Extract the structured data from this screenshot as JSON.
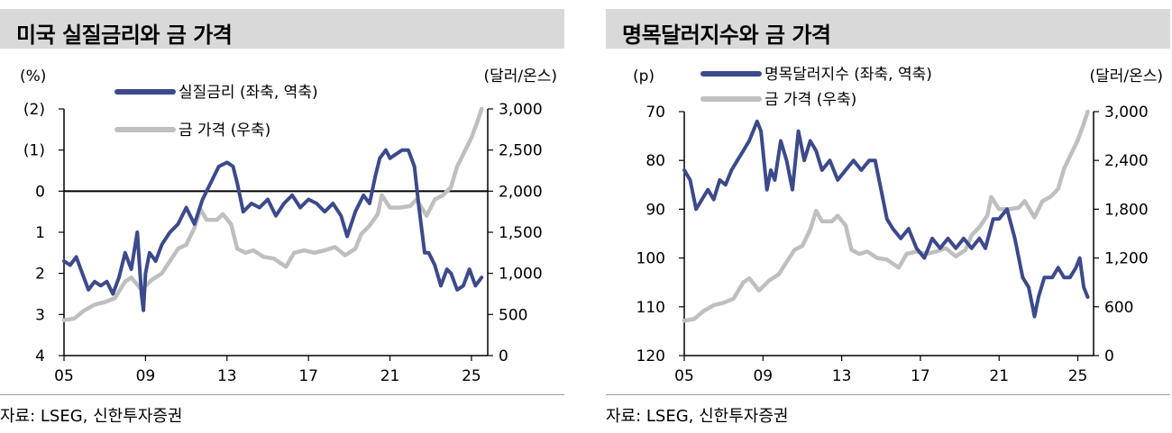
{
  "source_text": "자료: LSEG, 신한투자증권",
  "colors": {
    "navy": "#3c4a8b",
    "gray": "#bfbfbf",
    "title_bg": "#d9d9d9"
  },
  "chart_data": [
    {
      "type": "line",
      "title": "미국 실질금리와 금 가격",
      "left_unit": "(%)",
      "right_unit": "(달러/온스)",
      "left_axis": {
        "ticks": [
          -2,
          -1,
          0,
          1,
          2,
          3,
          4
        ],
        "tick_labels": [
          "(2)",
          "(1)",
          "0",
          "1",
          "2",
          "3",
          "4"
        ],
        "inverted": true,
        "range": [
          -2,
          4
        ]
      },
      "right_axis": {
        "ticks": [
          0,
          500,
          1000,
          1500,
          2000,
          2500,
          3000
        ],
        "tick_labels": [
          "0",
          "500",
          "1,000",
          "1,500",
          "2,000",
          "2,500",
          "3,000"
        ],
        "range": [
          0,
          3000
        ]
      },
      "x_axis": {
        "range": [
          2005,
          2025.8
        ],
        "ticks": [
          2005,
          2009,
          2013,
          2017,
          2021,
          2025
        ],
        "tick_labels": [
          "05",
          "09",
          "13",
          "17",
          "21",
          "25"
        ]
      },
      "zero_line": 0,
      "series": [
        {
          "name": "실질금리 (좌축, 역축)",
          "axis": "left",
          "color": "#3c4a8b",
          "x": [
            2005.0,
            2005.3,
            2005.6,
            2005.9,
            2006.2,
            2006.5,
            2006.8,
            2007.1,
            2007.4,
            2007.7,
            2008.0,
            2008.3,
            2008.6,
            2008.8,
            2008.9,
            2009.0,
            2009.2,
            2009.5,
            2009.8,
            2010.2,
            2010.6,
            2011.0,
            2011.4,
            2011.8,
            2012.2,
            2012.6,
            2013.0,
            2013.3,
            2013.5,
            2013.8,
            2014.2,
            2014.6,
            2015.0,
            2015.4,
            2015.8,
            2016.2,
            2016.6,
            2017.0,
            2017.4,
            2017.8,
            2018.2,
            2018.6,
            2018.9,
            2019.3,
            2019.7,
            2020.0,
            2020.3,
            2020.5,
            2020.8,
            2021.0,
            2021.3,
            2021.6,
            2021.9,
            2022.2,
            2022.4,
            2022.7,
            2022.9,
            2023.2,
            2023.5,
            2023.8,
            2024.0,
            2024.3,
            2024.6,
            2024.9,
            2025.2,
            2025.5
          ],
          "values": [
            1.7,
            1.8,
            1.6,
            2.0,
            2.4,
            2.2,
            2.3,
            2.2,
            2.5,
            2.1,
            1.5,
            1.9,
            1.0,
            2.5,
            2.9,
            2.0,
            1.5,
            1.7,
            1.3,
            1.0,
            0.8,
            0.4,
            0.8,
            0.2,
            -0.2,
            -0.6,
            -0.7,
            -0.6,
            -0.2,
            0.5,
            0.3,
            0.4,
            0.2,
            0.6,
            0.3,
            0.1,
            0.4,
            0.2,
            0.3,
            0.5,
            0.3,
            0.6,
            1.1,
            0.5,
            0.1,
            0.3,
            -0.4,
            -0.8,
            -1.0,
            -0.8,
            -0.9,
            -1.0,
            -1.0,
            -0.6,
            0.3,
            1.5,
            1.5,
            1.8,
            2.3,
            1.9,
            2.0,
            2.4,
            2.3,
            1.9,
            2.3,
            2.1
          ]
        },
        {
          "name": "금 가격 (우축)",
          "axis": "right",
          "color": "#bfbfbf",
          "x": [
            2005.0,
            2005.5,
            2006.0,
            2006.5,
            2007.0,
            2007.5,
            2008.0,
            2008.3,
            2008.8,
            2009.3,
            2009.8,
            2010.2,
            2010.6,
            2011.0,
            2011.4,
            2011.7,
            2012.0,
            2012.5,
            2012.8,
            2013.2,
            2013.5,
            2013.9,
            2014.3,
            2014.8,
            2015.3,
            2015.9,
            2016.3,
            2016.8,
            2017.3,
            2017.8,
            2018.3,
            2018.8,
            2019.3,
            2019.6,
            2020.0,
            2020.4,
            2020.6,
            2021.0,
            2021.5,
            2022.0,
            2022.3,
            2022.8,
            2023.2,
            2023.6,
            2024.0,
            2024.3,
            2024.6,
            2025.0,
            2025.3,
            2025.5
          ],
          "values": [
            430,
            450,
            550,
            620,
            650,
            700,
            900,
            950,
            800,
            920,
            1000,
            1150,
            1300,
            1350,
            1550,
            1780,
            1650,
            1650,
            1720,
            1600,
            1300,
            1250,
            1280,
            1200,
            1180,
            1080,
            1250,
            1280,
            1250,
            1280,
            1320,
            1220,
            1300,
            1480,
            1580,
            1720,
            1950,
            1800,
            1800,
            1820,
            1900,
            1700,
            1900,
            1950,
            2050,
            2300,
            2450,
            2650,
            2850,
            3000
          ]
        }
      ]
    },
    {
      "type": "line",
      "title": "명목달러지수와 금 가격",
      "left_unit": "(p)",
      "right_unit": "(달러/온스)",
      "left_axis": {
        "ticks": [
          70,
          80,
          90,
          100,
          110,
          120
        ],
        "tick_labels": [
          "70",
          "80",
          "90",
          "100",
          "110",
          "120"
        ],
        "inverted": true,
        "range": [
          70,
          120
        ]
      },
      "right_axis": {
        "ticks": [
          0,
          600,
          1200,
          1800,
          2400,
          3000
        ],
        "tick_labels": [
          "0",
          "600",
          "1,200",
          "1,800",
          "2,400",
          "3,000"
        ],
        "range": [
          0,
          3000
        ]
      },
      "x_axis": {
        "range": [
          2005,
          2025.8
        ],
        "ticks": [
          2005,
          2009,
          2013,
          2017,
          2021,
          2025
        ],
        "tick_labels": [
          "05",
          "09",
          "13",
          "17",
          "21",
          "25"
        ]
      },
      "series": [
        {
          "name": "명목달러지수 (좌축, 역축)",
          "axis": "left",
          "color": "#3c4a8b",
          "x": [
            2005.0,
            2005.3,
            2005.6,
            2005.9,
            2006.2,
            2006.5,
            2006.8,
            2007.1,
            2007.4,
            2007.7,
            2008.0,
            2008.3,
            2008.5,
            2008.7,
            2008.9,
            2009.2,
            2009.4,
            2009.6,
            2009.9,
            2010.2,
            2010.5,
            2010.8,
            2011.1,
            2011.4,
            2011.7,
            2012.0,
            2012.4,
            2012.8,
            2013.2,
            2013.6,
            2014.0,
            2014.4,
            2014.7,
            2015.0,
            2015.3,
            2015.6,
            2016.0,
            2016.4,
            2016.8,
            2017.2,
            2017.6,
            2018.0,
            2018.4,
            2018.8,
            2019.2,
            2019.6,
            2020.0,
            2020.3,
            2020.7,
            2021.0,
            2021.4,
            2021.8,
            2022.2,
            2022.5,
            2022.8,
            2023.0,
            2023.3,
            2023.7,
            2024.0,
            2024.3,
            2024.6,
            2024.9,
            2025.1,
            2025.3,
            2025.5
          ],
          "values": [
            82,
            84,
            90,
            88,
            86,
            88,
            84,
            85,
            82,
            80,
            78,
            76,
            74,
            72,
            74,
            86,
            82,
            84,
            76,
            80,
            86,
            74,
            80,
            76,
            78,
            82,
            80,
            84,
            82,
            80,
            82,
            80,
            80,
            86,
            92,
            94,
            96,
            94,
            98,
            100,
            96,
            98,
            96,
            98,
            96,
            98,
            96,
            98,
            92,
            92,
            90,
            96,
            104,
            106,
            112,
            108,
            104,
            104,
            102,
            104,
            104,
            102,
            100,
            106,
            108
          ]
        },
        {
          "name": "금 가격 (우축)",
          "axis": "right",
          "color": "#bfbfbf",
          "x": [
            2005.0,
            2005.5,
            2006.0,
            2006.5,
            2007.0,
            2007.5,
            2008.0,
            2008.3,
            2008.8,
            2009.3,
            2009.8,
            2010.2,
            2010.6,
            2011.0,
            2011.4,
            2011.7,
            2012.0,
            2012.5,
            2012.8,
            2013.2,
            2013.5,
            2013.9,
            2014.3,
            2014.8,
            2015.3,
            2015.9,
            2016.3,
            2016.8,
            2017.3,
            2017.8,
            2018.3,
            2018.8,
            2019.3,
            2019.6,
            2020.0,
            2020.4,
            2020.6,
            2021.0,
            2021.5,
            2022.0,
            2022.3,
            2022.8,
            2023.2,
            2023.6,
            2024.0,
            2024.3,
            2024.6,
            2025.0,
            2025.3,
            2025.5
          ],
          "values": [
            430,
            450,
            550,
            620,
            650,
            700,
            900,
            950,
            800,
            920,
            1000,
            1150,
            1300,
            1350,
            1550,
            1780,
            1650,
            1650,
            1720,
            1600,
            1300,
            1250,
            1280,
            1200,
            1180,
            1080,
            1250,
            1280,
            1250,
            1280,
            1320,
            1220,
            1300,
            1480,
            1580,
            1720,
            1950,
            1800,
            1800,
            1820,
            1900,
            1700,
            1900,
            1950,
            2050,
            2300,
            2450,
            2650,
            2850,
            3000
          ]
        }
      ]
    }
  ]
}
